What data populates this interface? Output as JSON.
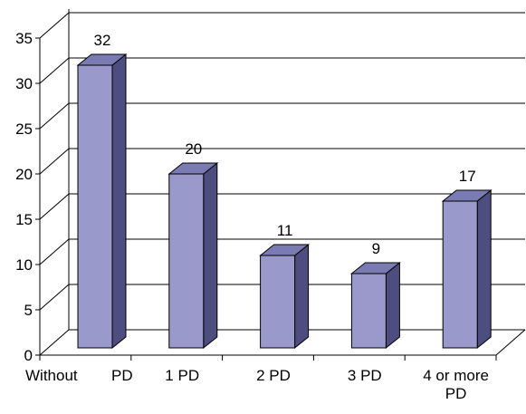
{
  "chart_data": {
    "type": "bar",
    "categories": [
      "Without PD",
      "1 PD",
      "2 PD",
      "3 PD",
      "4 or more PD"
    ],
    "values": [
      32,
      20,
      11,
      9,
      17
    ],
    "title": "",
    "xlabel": "",
    "ylabel": "",
    "ylim": [
      0,
      35
    ],
    "yticks": [
      "0",
      "5",
      "10",
      "15",
      "20",
      "25",
      "30",
      "35"
    ],
    "data_labels": [
      "32",
      "20",
      "11",
      "9",
      "17"
    ],
    "category_label_lines": [
      [
        "Without",
        "PD"
      ],
      [
        "1 PD"
      ],
      [
        "2 PD"
      ],
      [
        "3 PD"
      ],
      [
        "4 or more",
        "PD"
      ]
    ],
    "grid": true,
    "legend": "none",
    "style": "3d-column",
    "colors": {
      "bar_front": "#9999cc",
      "bar_side": "#4d4d80",
      "bar_top": "#7b7bb3",
      "edge": "#000000"
    }
  }
}
